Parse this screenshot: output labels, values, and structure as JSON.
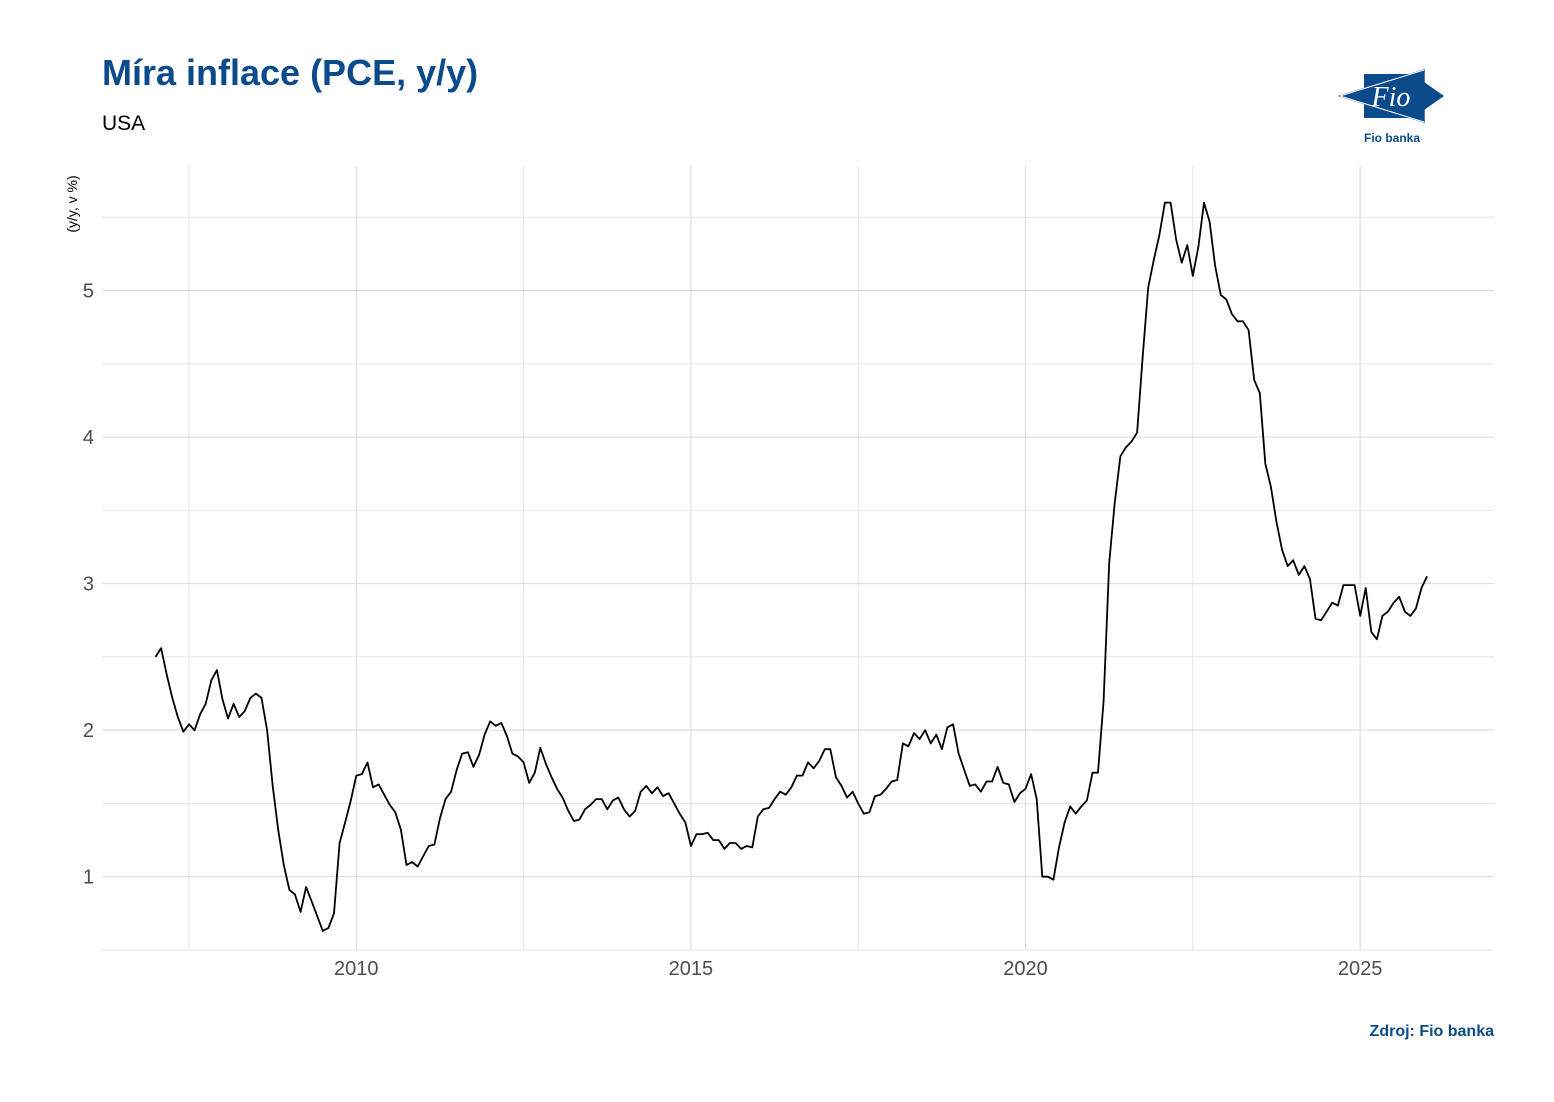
{
  "header": {
    "title": "Míra inflace (PCE, y/y)",
    "subtitle": "USA"
  },
  "footer": {
    "source": "Zdroj: Fio banka"
  },
  "logo": {
    "mark_text": "Fio",
    "caption": "Fio banka"
  },
  "colors": {
    "brand": "#0B4A8B",
    "line": "#000000",
    "grid": "#d9d9d9",
    "axis_text": "#4d4d4d"
  },
  "chart_data": {
    "type": "line",
    "title": "Míra inflace (PCE, y/y)",
    "subtitle": "USA",
    "ylabel": "(y/y, v %)",
    "xlabel": "",
    "xlim": [
      2006.2,
      2027.0
    ],
    "ylim": [
      0.5,
      5.85
    ],
    "x_ticks": [
      2010,
      2015,
      2020,
      2025
    ],
    "y_ticks": [
      1,
      2,
      3,
      4,
      5
    ],
    "grid": true,
    "series": [
      {
        "x": [
          2007.0,
          2007.083,
          2007.167,
          2007.25,
          2007.333,
          2007.417,
          2007.5,
          2007.583,
          2007.667,
          2007.75,
          2007.833,
          2007.917,
          2008.0,
          2008.083,
          2008.167,
          2008.25,
          2008.333,
          2008.417,
          2008.5,
          2008.583,
          2008.667,
          2008.75,
          2008.833,
          2008.917,
          2009.0,
          2009.083,
          2009.167,
          2009.25,
          2009.333,
          2009.417,
          2009.5,
          2009.583,
          2009.667,
          2009.75,
          2009.833,
          2009.917,
          2010.0,
          2010.083,
          2010.167,
          2010.25,
          2010.333,
          2010.417,
          2010.5,
          2010.583,
          2010.667,
          2010.75,
          2010.833,
          2010.917,
          2011.0,
          2011.083,
          2011.167,
          2011.25,
          2011.333,
          2011.417,
          2011.5,
          2011.583,
          2011.667,
          2011.75,
          2011.833,
          2011.917,
          2012.0,
          2012.083,
          2012.167,
          2012.25,
          2012.333,
          2012.417,
          2012.5,
          2012.583,
          2012.667,
          2012.75,
          2012.833,
          2012.917,
          2013.0,
          2013.083,
          2013.167,
          2013.25,
          2013.333,
          2013.417,
          2013.5,
          2013.583,
          2013.667,
          2013.75,
          2013.833,
          2013.917,
          2014.0,
          2014.083,
          2014.167,
          2014.25,
          2014.333,
          2014.417,
          2014.5,
          2014.583,
          2014.667,
          2014.75,
          2014.833,
          2014.917,
          2015.0,
          2015.083,
          2015.167,
          2015.25,
          2015.333,
          2015.417,
          2015.5,
          2015.583,
          2015.667,
          2015.75,
          2015.833,
          2015.917,
          2016.0,
          2016.083,
          2016.167,
          2016.25,
          2016.333,
          2016.417,
          2016.5,
          2016.583,
          2016.667,
          2016.75,
          2016.833,
          2016.917,
          2017.0,
          2017.083,
          2017.167,
          2017.25,
          2017.333,
          2017.417,
          2017.5,
          2017.583,
          2017.667,
          2017.75,
          2017.833,
          2017.917,
          2018.0,
          2018.083,
          2018.167,
          2018.25,
          2018.333,
          2018.417,
          2018.5,
          2018.583,
          2018.667,
          2018.75,
          2018.833,
          2018.917,
          2019.0,
          2019.083,
          2019.167,
          2019.25,
          2019.333,
          2019.417,
          2019.5,
          2019.583,
          2019.667,
          2019.75,
          2019.833,
          2019.917,
          2020.0,
          2020.083,
          2020.167,
          2020.25,
          2020.333,
          2020.417,
          2020.5,
          2020.583,
          2020.667,
          2020.75,
          2020.833,
          2020.917,
          2021.0,
          2021.083,
          2021.167,
          2021.25,
          2021.333,
          2021.417,
          2021.5,
          2021.583,
          2021.667,
          2021.75,
          2021.833,
          2021.917,
          2022.0,
          2022.083,
          2022.167,
          2022.25,
          2022.333,
          2022.417,
          2022.5,
          2022.583,
          2022.667,
          2022.75,
          2022.833,
          2022.917,
          2023.0,
          2023.083,
          2023.167,
          2023.25,
          2023.333,
          2023.417,
          2023.5,
          2023.583,
          2023.667,
          2023.75,
          2023.833,
          2023.917,
          2024.0,
          2024.083,
          2024.167,
          2024.25,
          2024.333,
          2024.417,
          2024.5,
          2024.583,
          2024.667,
          2024.75,
          2024.833,
          2024.917,
          2025.0,
          2025.083,
          2025.167,
          2025.25,
          2025.333,
          2025.417,
          2025.5,
          2025.583,
          2025.667,
          2025.75,
          2025.833,
          2025.917,
          2026.0
        ],
        "values": [
          2.5,
          2.56,
          2.38,
          2.22,
          2.09,
          1.99,
          2.04,
          2.0,
          2.11,
          2.18,
          2.34,
          2.41,
          2.21,
          2.08,
          2.18,
          2.09,
          2.13,
          2.22,
          2.25,
          2.22,
          2.0,
          1.62,
          1.32,
          1.08,
          0.91,
          0.88,
          0.76,
          0.93,
          0.83,
          0.73,
          0.63,
          0.65,
          0.75,
          1.23,
          1.37,
          1.52,
          1.69,
          1.7,
          1.78,
          1.61,
          1.63,
          1.56,
          1.49,
          1.44,
          1.32,
          1.08,
          1.1,
          1.07,
          1.14,
          1.21,
          1.22,
          1.4,
          1.53,
          1.58,
          1.73,
          1.84,
          1.85,
          1.75,
          1.83,
          1.97,
          2.06,
          2.03,
          2.05,
          1.96,
          1.84,
          1.82,
          1.78,
          1.64,
          1.71,
          1.88,
          1.77,
          1.68,
          1.6,
          1.54,
          1.45,
          1.38,
          1.39,
          1.46,
          1.49,
          1.53,
          1.53,
          1.46,
          1.52,
          1.54,
          1.46,
          1.41,
          1.45,
          1.58,
          1.62,
          1.57,
          1.61,
          1.55,
          1.57,
          1.5,
          1.43,
          1.37,
          1.21,
          1.29,
          1.29,
          1.3,
          1.25,
          1.25,
          1.19,
          1.23,
          1.23,
          1.19,
          1.21,
          1.2,
          1.41,
          1.46,
          1.47,
          1.53,
          1.58,
          1.56,
          1.61,
          1.69,
          1.69,
          1.78,
          1.74,
          1.79,
          1.87,
          1.87,
          1.68,
          1.62,
          1.54,
          1.58,
          1.5,
          1.43,
          1.44,
          1.55,
          1.56,
          1.6,
          1.65,
          1.66,
          1.91,
          1.89,
          1.98,
          1.94,
          2.0,
          1.91,
          1.97,
          1.87,
          2.02,
          2.04,
          1.84,
          1.73,
          1.62,
          1.63,
          1.58,
          1.65,
          1.65,
          1.75,
          1.64,
          1.63,
          1.51,
          1.57,
          1.6,
          1.7,
          1.53,
          1.0,
          1.0,
          0.98,
          1.2,
          1.37,
          1.48,
          1.43,
          1.48,
          1.52,
          1.71,
          1.71,
          2.2,
          3.14,
          3.55,
          3.87,
          3.93,
          3.97,
          4.03,
          4.55,
          5.02,
          5.21,
          5.38,
          5.6,
          5.6,
          5.35,
          5.19,
          5.31,
          5.1,
          5.3,
          5.6,
          5.47,
          5.17,
          4.97,
          4.94,
          4.84,
          4.79,
          4.79,
          4.73,
          4.39,
          4.3,
          3.82,
          3.66,
          3.42,
          3.23,
          3.12,
          3.16,
          3.06,
          3.12,
          3.03,
          2.76,
          2.75,
          2.81,
          2.87,
          2.85,
          2.99,
          2.99,
          2.99,
          2.78,
          2.97,
          2.67,
          2.62,
          2.78,
          2.81,
          2.87,
          2.91,
          2.81,
          2.78,
          2.83,
          2.97,
          3.05
        ]
      }
    ]
  }
}
